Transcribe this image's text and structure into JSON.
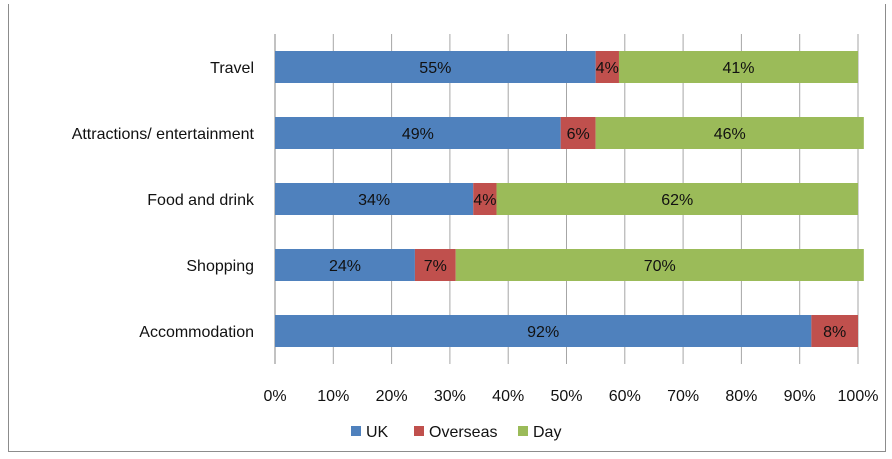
{
  "chart_data": {
    "type": "bar",
    "orientation": "horizontal",
    "stacked": "percent",
    "categories": [
      "Travel",
      "Attractions/ entertainment",
      "Food and drink",
      "Shopping",
      "Accommodation"
    ],
    "series": [
      {
        "name": "UK",
        "values": [
          55,
          49,
          34,
          24,
          92
        ],
        "labels": [
          "55%",
          "49%",
          "34%",
          "24%",
          "92%"
        ],
        "color": "#4f81bd"
      },
      {
        "name": "Overseas",
        "values": [
          4,
          6,
          4,
          7,
          8
        ],
        "labels": [
          "4%",
          "6%",
          "4%",
          "7%",
          "8%"
        ],
        "color": "#c0504d"
      },
      {
        "name": "Day",
        "values": [
          41,
          46,
          62,
          70,
          0
        ],
        "labels": [
          "41%",
          "46%",
          "62%",
          "70%",
          ""
        ],
        "color": "#9bbb59"
      }
    ],
    "x_ticks": [
      "0%",
      "10%",
      "20%",
      "30%",
      "40%",
      "50%",
      "60%",
      "70%",
      "80%",
      "90%",
      "100%"
    ],
    "xlim": [
      0,
      100
    ],
    "grid": "vertical",
    "legend": "bottom",
    "title": "",
    "xlabel": "",
    "ylabel": ""
  }
}
